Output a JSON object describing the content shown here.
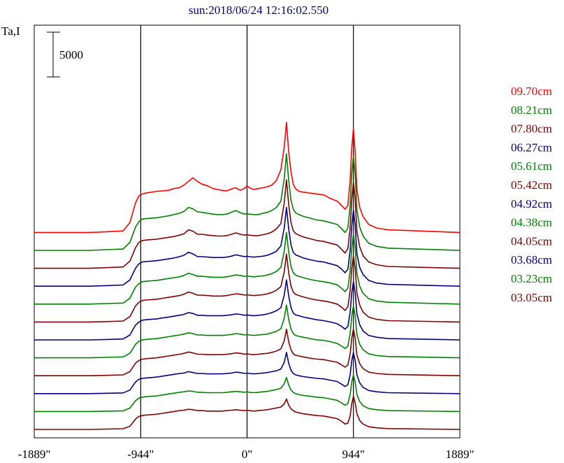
{
  "chart_data": {
    "type": "line",
    "title": "sun:2018/06/24 12:16:02.550",
    "ylabel": "Ta,I",
    "scale_bar_label": "5000",
    "xlim": [
      -1889,
      1889
    ],
    "x_ticks": [
      {
        "value": -1889,
        "label": "-1889\""
      },
      {
        "value": -944,
        "label": "-944\""
      },
      {
        "value": 0,
        "label": "0\""
      },
      {
        "value": 944,
        "label": "944\""
      },
      {
        "value": 1889,
        "label": "1889\""
      }
    ],
    "vertical_lines": [
      -944,
      0,
      944
    ],
    "trace_offset_step": 2000,
    "x": [
      -1889,
      -1400,
      -1250,
      -1100,
      -1040,
      -990,
      -960,
      -930,
      -900,
      -850,
      -800,
      -750,
      -700,
      -650,
      -600,
      -560,
      -520,
      -480,
      -440,
      -400,
      -350,
      -300,
      -260,
      -220,
      -180,
      -140,
      -100,
      -60,
      -20,
      0,
      20,
      60,
      100,
      140,
      180,
      220,
      260,
      300,
      330,
      350,
      370,
      390,
      410,
      430,
      460,
      500,
      560,
      620,
      680,
      740,
      800,
      840,
      870,
      895,
      915,
      930,
      944,
      960,
      975,
      1000,
      1030,
      1080,
      1150,
      1250,
      1889
    ],
    "series": [
      {
        "name": "09.70cm",
        "color": "#ff0000",
        "values": [
          0,
          0,
          80,
          180,
          1100,
          3300,
          4100,
          4300,
          4400,
          4500,
          4600,
          4650,
          4700,
          4900,
          5000,
          5300,
          5700,
          6100,
          5700,
          5400,
          5200,
          4900,
          4800,
          4700,
          4650,
          4850,
          5000,
          4700,
          4950,
          5200,
          5000,
          4800,
          4900,
          5000,
          5100,
          5300,
          5800,
          7000,
          9500,
          12300,
          9000,
          6800,
          5400,
          4900,
          4600,
          4500,
          4400,
          4300,
          4200,
          3800,
          3500,
          3000,
          2600,
          3000,
          5800,
          9500,
          11600,
          9000,
          4800,
          2800,
          1800,
          900,
          500,
          300,
          0
        ]
      },
      {
        "name": "08.21cm",
        "color": "#008000",
        "values": [
          0,
          0,
          80,
          150,
          900,
          2600,
          3200,
          3500,
          3550,
          3600,
          3650,
          3750,
          3850,
          4000,
          4150,
          4350,
          4800,
          4650,
          4300,
          4250,
          4150,
          4050,
          4000,
          4000,
          4050,
          4250,
          4450,
          4200,
          4050,
          4100,
          4050,
          4000,
          4000,
          4150,
          4250,
          4450,
          4800,
          5500,
          8000,
          10800,
          7800,
          5600,
          4600,
          4200,
          4000,
          3800,
          3600,
          3400,
          3300,
          3100,
          2900,
          2400,
          2000,
          2500,
          5000,
          8600,
          10500,
          8500,
          4500,
          2600,
          1600,
          800,
          450,
          250,
          0
        ]
      },
      {
        "name": "07.80cm",
        "color": "#800000",
        "values": [
          0,
          0,
          70,
          150,
          800,
          2300,
          2900,
          3100,
          3150,
          3200,
          3250,
          3350,
          3450,
          3550,
          3700,
          3850,
          4300,
          4150,
          3800,
          3800,
          3700,
          3650,
          3600,
          3600,
          3650,
          3800,
          3950,
          3800,
          3700,
          3750,
          3700,
          3650,
          3650,
          3750,
          3850,
          4050,
          4400,
          5000,
          7300,
          9900,
          7100,
          5100,
          4200,
          3900,
          3700,
          3500,
          3300,
          3100,
          3000,
          2800,
          2600,
          2100,
          1700,
          2200,
          4500,
          7700,
          9600,
          7700,
          4100,
          2400,
          1400,
          700,
          400,
          200,
          0
        ]
      },
      {
        "name": "06.27cm",
        "color": "#000080",
        "values": [
          0,
          0,
          60,
          130,
          700,
          2000,
          2500,
          2700,
          2750,
          2800,
          2850,
          2950,
          3050,
          3150,
          3300,
          3450,
          3800,
          3600,
          3300,
          3300,
          3250,
          3200,
          3200,
          3200,
          3250,
          3350,
          3500,
          3400,
          3300,
          3350,
          3300,
          3250,
          3300,
          3350,
          3450,
          3650,
          3900,
          4500,
          6500,
          8800,
          6400,
          4600,
          3800,
          3500,
          3350,
          3150,
          2950,
          2800,
          2700,
          2500,
          2300,
          1900,
          1500,
          1900,
          4000,
          6800,
          8500,
          6800,
          3600,
          2100,
          1300,
          650,
          350,
          200,
          0
        ]
      },
      {
        "name": "05.61cm",
        "color": "#008000",
        "values": [
          0,
          0,
          60,
          120,
          650,
          1900,
          2300,
          2500,
          2550,
          2600,
          2650,
          2750,
          2850,
          2950,
          3050,
          3200,
          3450,
          3300,
          3100,
          3100,
          3050,
          3000,
          3000,
          3000,
          3050,
          3150,
          3250,
          3200,
          3100,
          3150,
          3100,
          3050,
          3100,
          3150,
          3250,
          3400,
          3650,
          4100,
          5900,
          8000,
          5800,
          4200,
          3500,
          3250,
          3100,
          2950,
          2750,
          2600,
          2500,
          2350,
          2150,
          1750,
          1400,
          1800,
          3700,
          6300,
          7800,
          6300,
          3400,
          2000,
          1200,
          600,
          350,
          200,
          0
        ]
      },
      {
        "name": "05.42cm",
        "color": "#800000",
        "values": [
          0,
          0,
          50,
          110,
          600,
          1800,
          2200,
          2400,
          2450,
          2500,
          2550,
          2650,
          2750,
          2850,
          2950,
          3100,
          3350,
          3200,
          3000,
          3000,
          2950,
          2900,
          2900,
          2900,
          2950,
          3050,
          3150,
          3100,
          3000,
          3050,
          3000,
          2950,
          3000,
          3050,
          3150,
          3300,
          3550,
          3950,
          5600,
          7600,
          5500,
          4000,
          3350,
          3100,
          2950,
          2800,
          2600,
          2450,
          2350,
          2200,
          2000,
          1650,
          1300,
          1700,
          3500,
          6000,
          7400,
          6000,
          3200,
          1900,
          1100,
          550,
          300,
          150,
          0
        ]
      },
      {
        "name": "04.92cm",
        "color": "#000080",
        "values": [
          0,
          0,
          50,
          100,
          550,
          1650,
          2000,
          2200,
          2250,
          2300,
          2350,
          2450,
          2550,
          2650,
          2750,
          2850,
          3050,
          2950,
          2750,
          2750,
          2700,
          2700,
          2700,
          2700,
          2750,
          2800,
          2900,
          2850,
          2750,
          2800,
          2750,
          2700,
          2750,
          2800,
          2900,
          3050,
          3250,
          3600,
          5000,
          6700,
          4900,
          3600,
          3000,
          2800,
          2700,
          2550,
          2400,
          2250,
          2150,
          2000,
          1800,
          1500,
          1200,
          1500,
          3100,
          5300,
          6500,
          5300,
          2900,
          1700,
          1000,
          500,
          300,
          150,
          0
        ]
      },
      {
        "name": "04.38cm",
        "color": "#008000",
        "values": [
          0,
          0,
          50,
          100,
          500,
          1500,
          1850,
          2000,
          2050,
          2100,
          2150,
          2250,
          2350,
          2450,
          2550,
          2650,
          2800,
          2700,
          2550,
          2550,
          2500,
          2500,
          2500,
          2500,
          2550,
          2600,
          2700,
          2650,
          2550,
          2600,
          2550,
          2500,
          2550,
          2600,
          2650,
          2800,
          2950,
          3250,
          4400,
          5900,
          4300,
          3200,
          2700,
          2500,
          2400,
          2300,
          2150,
          2000,
          1950,
          1800,
          1600,
          1300,
          1050,
          1300,
          2700,
          4700,
          5800,
          4700,
          2600,
          1500,
          900,
          450,
          250,
          150,
          0
        ]
      },
      {
        "name": "04.05cm",
        "color": "#800000",
        "values": [
          0,
          0,
          40,
          90,
          450,
          1400,
          1700,
          1850,
          1900,
          1950,
          2000,
          2100,
          2200,
          2300,
          2400,
          2500,
          2650,
          2550,
          2400,
          2400,
          2350,
          2350,
          2350,
          2350,
          2400,
          2450,
          2550,
          2500,
          2400,
          2450,
          2400,
          2350,
          2400,
          2450,
          2500,
          2600,
          2750,
          3000,
          3900,
          5200,
          3800,
          2900,
          2450,
          2300,
          2200,
          2100,
          1950,
          1850,
          1800,
          1650,
          1500,
          1200,
          950,
          1200,
          2400,
          4200,
          5200,
          4200,
          2300,
          1350,
          800,
          400,
          250,
          150,
          0
        ]
      },
      {
        "name": "03.68cm",
        "color": "#000080",
        "values": [
          0,
          0,
          40,
          80,
          400,
          1300,
          1600,
          1700,
          1750,
          1800,
          1850,
          1950,
          2050,
          2150,
          2250,
          2300,
          2450,
          2350,
          2250,
          2250,
          2200,
          2200,
          2200,
          2200,
          2250,
          2300,
          2400,
          2350,
          2250,
          2300,
          2250,
          2200,
          2250,
          2300,
          2350,
          2450,
          2550,
          2750,
          3500,
          4600,
          3400,
          2600,
          2250,
          2100,
          2000,
          1900,
          1800,
          1700,
          1650,
          1500,
          1350,
          1050,
          800,
          1000,
          2100,
          3700,
          4600,
          3700,
          2100,
          1200,
          700,
          350,
          200,
          100,
          0
        ]
      },
      {
        "name": "03.23cm",
        "color": "#008000",
        "values": [
          0,
          0,
          40,
          80,
          380,
          1200,
          1500,
          1600,
          1650,
          1700,
          1750,
          1850,
          1950,
          2050,
          2150,
          2200,
          2300,
          2250,
          2150,
          2150,
          2100,
          2100,
          2100,
          2100,
          2150,
          2200,
          2250,
          2200,
          2150,
          2200,
          2150,
          2100,
          2150,
          2200,
          2250,
          2350,
          2450,
          2600,
          3100,
          3800,
          2950,
          2400,
          2150,
          2000,
          1900,
          1800,
          1700,
          1600,
          1550,
          1400,
          1250,
          950,
          700,
          900,
          1900,
          3300,
          4100,
          3300,
          1900,
          1100,
          650,
          330,
          200,
          100,
          0
        ]
      },
      {
        "name": "03.05cm",
        "color": "#800000",
        "values": [
          0,
          0,
          40,
          80,
          350,
          1150,
          1450,
          1550,
          1600,
          1650,
          1700,
          1800,
          1900,
          2000,
          2100,
          2150,
          2250,
          2200,
          2100,
          2100,
          2050,
          2050,
          2050,
          2050,
          2100,
          2150,
          2200,
          2150,
          2100,
          2150,
          2100,
          2050,
          2100,
          2150,
          2200,
          2300,
          2400,
          2500,
          2850,
          3400,
          2700,
          2300,
          2100,
          1950,
          1850,
          1750,
          1650,
          1550,
          1500,
          1350,
          1200,
          900,
          600,
          700,
          1500,
          2900,
          3700,
          3000,
          1750,
          1000,
          600,
          300,
          180,
          90,
          0
        ]
      }
    ]
  }
}
